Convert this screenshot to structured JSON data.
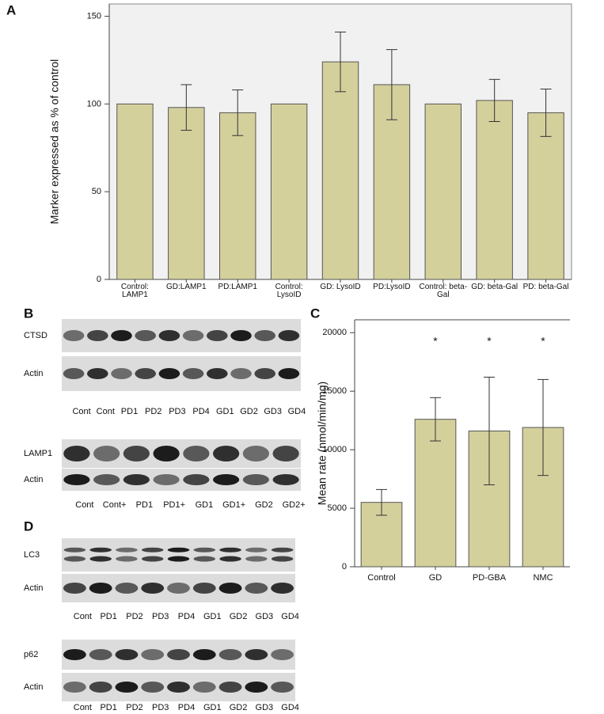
{
  "panels": [
    "A",
    "B",
    "C",
    "D"
  ],
  "chart_data": [
    {
      "type": "bar",
      "ylabel": "Marker expressed as % of control",
      "categories": [
        "Control: LAMP1",
        "GD:LAMP1",
        "PD:LAMP1",
        "Control: LysoID",
        "GD: LysoID",
        "PD:LysoID",
        "Control: beta-Gal",
        "GD: beta-Gal",
        "PD: beta-Gal"
      ],
      "values": [
        100,
        98,
        95,
        100,
        124,
        111,
        100,
        102,
        95
      ],
      "errors": [
        0,
        13,
        13,
        0,
        17,
        20,
        0,
        12,
        13.5
      ],
      "color": "#d4d09c",
      "ylim": [
        0,
        157
      ],
      "yticks": [
        0,
        50,
        100,
        150
      ],
      "background": "#f1f1f1"
    },
    {
      "type": "bar",
      "ylabel": "Mean rate (nmol/min/mg)",
      "categories": [
        "Control",
        "GD",
        "PD-GBA",
        "NMC"
      ],
      "values": [
        5500,
        12600,
        11600,
        11900
      ],
      "errors": [
        1100,
        1850,
        4600,
        4100
      ],
      "significance": [
        null,
        "*",
        "*",
        "*"
      ],
      "color": "#d4d09c",
      "ylim": [
        0,
        21100
      ],
      "yticks": [
        0,
        5000,
        10000,
        15000,
        20000
      ],
      "background": "#ffffff"
    }
  ],
  "blots": [
    {
      "rows": [
        "CTSD",
        "Actin"
      ],
      "lanes": [
        "Cont",
        "Cont",
        "PD1",
        "PD2",
        "PD3",
        "PD4",
        "GD1",
        "GD2",
        "GD3",
        "GD4"
      ]
    },
    {
      "rows": [
        "LAMP1",
        "Actin"
      ],
      "lanes": [
        "Cont",
        "Cont+",
        "PD1",
        "PD1+",
        "GD1",
        "GD1+",
        "GD2",
        "GD2+"
      ]
    },
    {
      "rows": [
        "LC3",
        "Actin"
      ],
      "lanes": [
        "Cont",
        "PD1",
        "PD2",
        "PD3",
        "PD4",
        "GD1",
        "GD2",
        "GD3",
        "GD4"
      ]
    },
    {
      "rows": [
        "p62",
        "Actin"
      ],
      "lanes": [
        "Cont",
        "PD1",
        "PD2",
        "PD3",
        "PD4",
        "GD1",
        "GD2",
        "GD3",
        "GD4"
      ]
    }
  ]
}
